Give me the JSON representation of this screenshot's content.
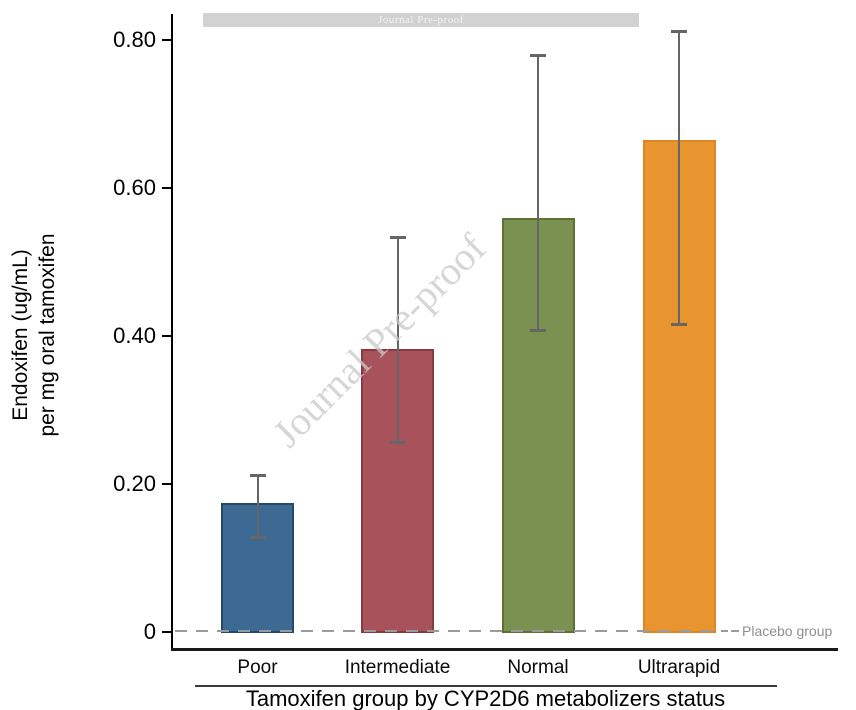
{
  "banner": {
    "text": "Journal Pre-proof"
  },
  "watermark": {
    "text": "Journal Pre-proof",
    "color": "#c9c9c9"
  },
  "reference": {
    "label": "Placebo group"
  },
  "chart_data": {
    "type": "bar",
    "title": "",
    "categories": [
      "Poor",
      "Intermediate",
      "Normal",
      "Ultrarapid"
    ],
    "values": [
      0.175,
      0.383,
      0.559,
      0.665
    ],
    "error_low": [
      0.127,
      0.255,
      0.407,
      0.415
    ],
    "error_high": [
      0.212,
      0.534,
      0.78,
      0.812
    ],
    "bar_colors": [
      "#3d6a92",
      "#a8535c",
      "#7b9152",
      "#e8952f"
    ],
    "bar_border_colors": [
      "#24496b",
      "#8a3842",
      "#5c7233",
      "#dc8724"
    ],
    "error_bar_color": "#666666",
    "ylabel_line1": "Endoxifen (ug/mL)",
    "ylabel_line2": "per mg oral tamoxifen",
    "xlabel": "Tamoxifen group by CYP2D6 metabolizers status",
    "yticks": [
      {
        "label": "0",
        "value": 0
      },
      {
        "label": "0.20",
        "value": 0.2
      },
      {
        "label": "0.40",
        "value": 0.4
      },
      {
        "label": "0.60",
        "value": 0.6
      },
      {
        "label": "0.80",
        "value": 0.8
      }
    ],
    "ylim": [
      0,
      0.835
    ],
    "grid": false,
    "legend": false,
    "reference_line": {
      "value": 0,
      "style": "dashed",
      "label": "Placebo group"
    }
  }
}
